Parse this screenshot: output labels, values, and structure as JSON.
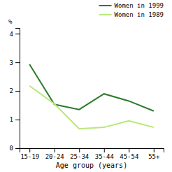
{
  "chart_data": {
    "type": "line",
    "categories": [
      "15-19",
      "20-24",
      "25-34",
      "35-44",
      "45-54",
      "55+"
    ],
    "series": [
      {
        "name": "Women in 1999",
        "color": "#2d7a2d",
        "values": [
          2.93,
          1.53,
          1.35,
          1.9,
          1.65,
          1.3
        ]
      },
      {
        "name": "Women in 1989",
        "color": "#b8e878",
        "values": [
          2.18,
          1.55,
          0.68,
          0.73,
          0.96,
          0.73
        ]
      }
    ],
    "ylabel": "%",
    "xlabel": "Age group (years)",
    "ylim": [
      0,
      4.2
    ],
    "yticks": [
      0,
      1,
      2,
      3,
      4
    ],
    "grid": false,
    "legend": "upper right"
  }
}
